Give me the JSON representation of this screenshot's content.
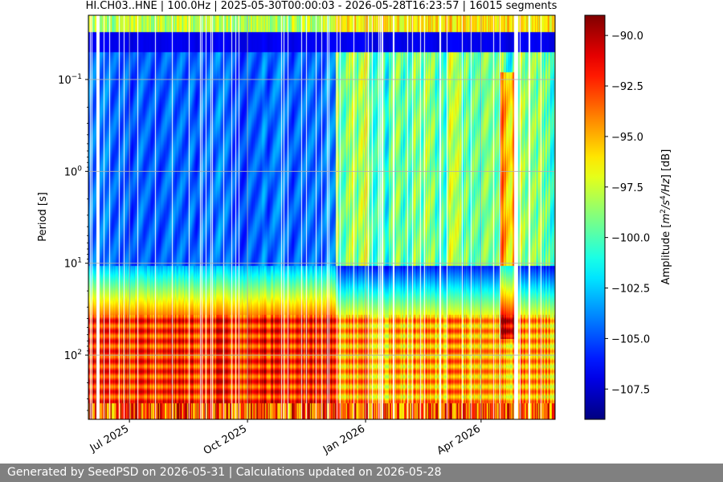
{
  "chart_data": {
    "type": "heatmap",
    "title": "HI.CH03..HNE | 100.0Hz | 2025-05-30T00:00:03 - 2026-05-28T16:23:57 | 16015 segments",
    "ylabel": "Period [s]",
    "xlabel": "",
    "y_scale": "log",
    "y_range": [
      500,
      0.02
    ],
    "y_ticks": [
      {
        "value": 0.1,
        "base": "10",
        "exp": "−1"
      },
      {
        "value": 1,
        "base": "10",
        "exp": "0"
      },
      {
        "value": 10,
        "base": "10",
        "exp": "1"
      },
      {
        "value": 100,
        "base": "10",
        "exp": "2"
      }
    ],
    "x_range": [
      "2025-05-30",
      "2026-05-28"
    ],
    "x_ticks": [
      {
        "date": "2025-07-01",
        "label": "Jul 2025"
      },
      {
        "date": "2025-10-01",
        "label": "Oct 2025"
      },
      {
        "date": "2026-01-01",
        "label": "Jan 2026"
      },
      {
        "date": "2026-04-01",
        "label": "Apr 2026"
      }
    ],
    "grid": true,
    "colormap": "jet",
    "colorbar": {
      "label": "Amplitude [m²/s⁴/Hz] [dB]",
      "label_main": "Amplitude [",
      "label_unit_m": "m",
      "label_unit_m_exp": "2",
      "label_unit_s": "/s",
      "label_unit_s_exp": "4",
      "label_unit_hz": "/Hz",
      "label_end": "] [dB]",
      "min": -109,
      "max": -89,
      "ticks": [
        {
          "value": -90.0,
          "label": "−90.0"
        },
        {
          "value": -92.5,
          "label": "−92.5"
        },
        {
          "value": -95.0,
          "label": "−95.0"
        },
        {
          "value": -97.5,
          "label": "−97.5"
        },
        {
          "value": -100.0,
          "label": "−100.0"
        },
        {
          "value": -102.5,
          "label": "−102.5"
        },
        {
          "value": -105.0,
          "label": "−105.0"
        },
        {
          "value": -107.5,
          "label": "−107.5"
        }
      ]
    }
  },
  "footer": {
    "text": "Generated by SeedPSD on 2026-05-31 | Calculations updated on 2026-05-28"
  }
}
